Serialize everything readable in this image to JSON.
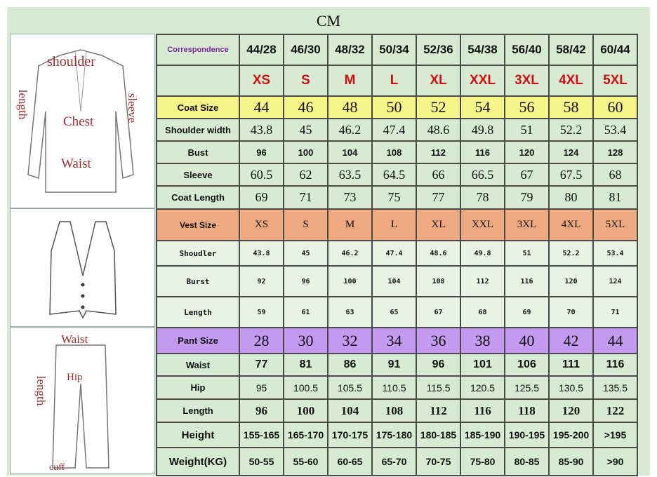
{
  "title": "CM",
  "illustrations": {
    "coat": {
      "labels": [
        "shoulder",
        "length",
        "sleeve",
        "Chest",
        "Waist"
      ]
    },
    "vest": {
      "labels": []
    },
    "pant": {
      "labels": [
        "Waist",
        "Hip",
        "length",
        "cuff"
      ]
    }
  },
  "colors": {
    "green": "#d6ebd2",
    "yellow": "#f7f58a",
    "orange": "#eda97f",
    "purple": "#c49af0",
    "size_red": "#d01010"
  },
  "rows": [
    {
      "label": "Correspondence",
      "style": "corr",
      "values": [
        "44/28",
        "46/30",
        "48/32",
        "50/34",
        "52/36",
        "54/38",
        "56/40",
        "58/42",
        "60/44"
      ]
    },
    {
      "label": "",
      "style": "letters",
      "values": [
        "XS",
        "S",
        "M",
        "L",
        "XL",
        "XXL",
        "3XL",
        "4XL",
        "5XL"
      ]
    },
    {
      "label": "Coat Size",
      "style": "coat-head",
      "values": [
        "44",
        "46",
        "48",
        "50",
        "52",
        "54",
        "56",
        "58",
        "60"
      ]
    },
    {
      "label": "Shoulder width",
      "style": "coat",
      "values": [
        "43.8",
        "45",
        "46.2",
        "47.4",
        "48.6",
        "49.8",
        "51",
        "52.2",
        "53.4"
      ]
    },
    {
      "label": "Bust",
      "style": "coat-sans",
      "values": [
        "96",
        "100",
        "104",
        "108",
        "112",
        "116",
        "120",
        "124",
        "128"
      ]
    },
    {
      "label": "Sleeve",
      "style": "coat",
      "values": [
        "60.5",
        "62",
        "63.5",
        "64.5",
        "66",
        "66.5",
        "67",
        "67.5",
        "68"
      ]
    },
    {
      "label": "Coat Length",
      "style": "coat",
      "values": [
        "69",
        "71",
        "73",
        "75",
        "77",
        "78",
        "79",
        "80",
        "81"
      ]
    },
    {
      "label": "Vest Size",
      "style": "vest-head",
      "values": [
        "XS",
        "S",
        "M",
        "L",
        "XL",
        "XXL",
        "3XL",
        "4XL",
        "5XL"
      ]
    },
    {
      "label": "Shoudler",
      "style": "vest",
      "values": [
        "43.8",
        "45",
        "46.2",
        "47.4",
        "48.6",
        "49.8",
        "51",
        "52.2",
        "53.4"
      ]
    },
    {
      "label": "Burst",
      "style": "vest",
      "values": [
        "92",
        "96",
        "100",
        "104",
        "108",
        "112",
        "116",
        "120",
        "124"
      ]
    },
    {
      "label": "Length",
      "style": "vest",
      "values": [
        "59",
        "61",
        "63",
        "65",
        "67",
        "68",
        "69",
        "70",
        "71"
      ]
    },
    {
      "label": "Pant Size",
      "style": "pant-head",
      "values": [
        "28",
        "30",
        "32",
        "34",
        "36",
        "38",
        "40",
        "42",
        "44"
      ]
    },
    {
      "label": "Waist",
      "style": "pant-bold",
      "values": [
        "77",
        "81",
        "86",
        "91",
        "96",
        "101",
        "106",
        "111",
        "116"
      ]
    },
    {
      "label": "Hip",
      "style": "pant-sans",
      "values": [
        "95",
        "100.5",
        "105.5",
        "110.5",
        "115.5",
        "120.5",
        "125.5",
        "130.5",
        "135.5"
      ]
    },
    {
      "label": "Length",
      "style": "pant-serif",
      "values": [
        "96",
        "100",
        "104",
        "108",
        "112",
        "116",
        "118",
        "120",
        "122"
      ]
    },
    {
      "label": "Height",
      "style": "body",
      "values": [
        "155-165",
        "165-170",
        "170-175",
        "175-180",
        "180-185",
        "185-190",
        "190-195",
        "195-200",
        ">195"
      ]
    },
    {
      "label": "Weight(KG)",
      "style": "body",
      "values": [
        "50-55",
        "55-60",
        "60-65",
        "65-70",
        "70-75",
        "75-80",
        "80-85",
        "85-90",
        ">90"
      ]
    }
  ]
}
